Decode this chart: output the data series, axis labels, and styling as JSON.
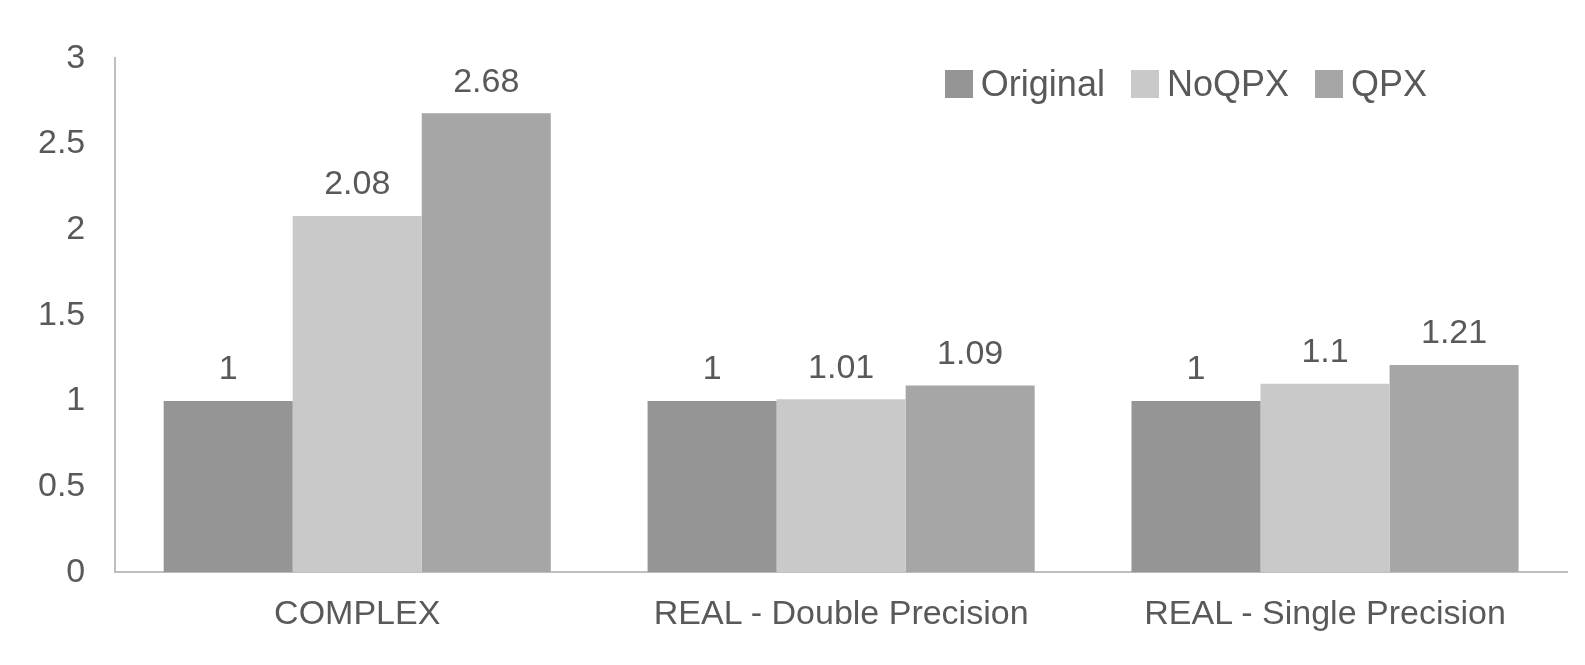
{
  "chart_data": {
    "type": "bar",
    "categories": [
      "COMPLEX",
      "REAL - Double Precision",
      "REAL - Single Precision"
    ],
    "series": [
      {
        "name": "Original",
        "color": "#959595",
        "values": [
          1,
          1,
          1
        ]
      },
      {
        "name": "NoQPX",
        "color": "#c9c9c9",
        "values": [
          2.08,
          1.01,
          1.1
        ]
      },
      {
        "name": "QPX",
        "color": "#a6a6a6",
        "values": [
          2.68,
          1.09,
          1.21
        ]
      }
    ],
    "ylim": [
      0,
      3
    ],
    "yticks": [
      0,
      0.5,
      1,
      1.5,
      2,
      2.5,
      3
    ],
    "grid": false,
    "legend": "top right",
    "data_labels": true
  }
}
